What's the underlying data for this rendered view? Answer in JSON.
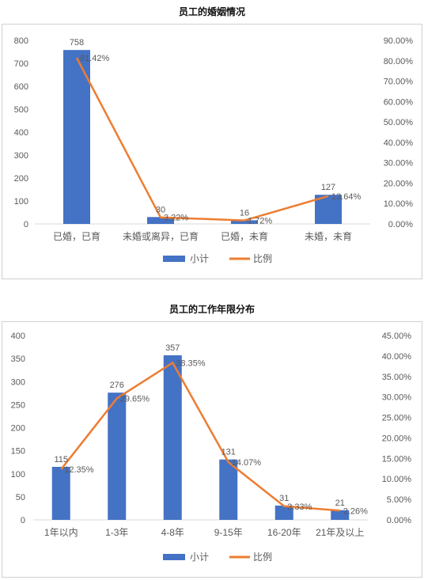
{
  "chart_data": [
    {
      "type": "bar",
      "title": "员工的婚姻情况",
      "categories": [
        "已婚，已育",
        "未婚或离异，已育",
        "已婚，未育",
        "未婚，未育"
      ],
      "series": [
        {
          "name": "小计",
          "type": "bar",
          "axis": "left",
          "values": [
            758,
            30,
            16,
            127
          ],
          "labels": [
            "758",
            "30",
            "16",
            "127"
          ],
          "color": "#4472c4"
        },
        {
          "name": "比例",
          "type": "line",
          "axis": "right",
          "values": [
            81.42,
            3.22,
            1.72,
            13.64
          ],
          "labels": [
            "81.42%",
            "3.22%",
            "1.72%",
            "13.64%"
          ],
          "color": "#ed7d31"
        }
      ],
      "yticks": [
        "0",
        "100",
        "200",
        "300",
        "400",
        "500",
        "600",
        "700",
        "800"
      ],
      "y2ticks": [
        "0.00%",
        "10.00%",
        "20.00%",
        "30.00%",
        "40.00%",
        "50.00%",
        "60.00%",
        "70.00%",
        "80.00%",
        "90.00%"
      ],
      "ylim": [
        0,
        800
      ],
      "y2lim": [
        0,
        90
      ],
      "grid": false,
      "legend": "bottom"
    },
    {
      "type": "bar",
      "title": "员工的工作年限分布",
      "categories": [
        "1年以内",
        "1-3年",
        "4-8年",
        "9-15年",
        "16-20年",
        "21年及以上"
      ],
      "series": [
        {
          "name": "小计",
          "type": "bar",
          "axis": "left",
          "values": [
            115,
            276,
            357,
            131,
            31,
            21
          ],
          "labels": [
            "115",
            "276",
            "357",
            "131",
            "31",
            "21"
          ],
          "color": "#4472c4"
        },
        {
          "name": "比例",
          "type": "line",
          "axis": "right",
          "values": [
            12.35,
            29.65,
            38.35,
            14.07,
            3.33,
            2.26
          ],
          "labels": [
            "12.35%",
            "29.65%",
            "38.35%",
            "14.07%",
            "3.33%",
            "2.26%"
          ],
          "color": "#ed7d31"
        }
      ],
      "yticks": [
        "0",
        "50",
        "100",
        "150",
        "200",
        "250",
        "300",
        "350",
        "400"
      ],
      "y2ticks": [
        "0.00%",
        "5.00%",
        "10.00%",
        "15.00%",
        "20.00%",
        "25.00%",
        "30.00%",
        "35.00%",
        "40.00%",
        "45.00%"
      ],
      "ylim": [
        0,
        400
      ],
      "y2lim": [
        0,
        45
      ],
      "grid": false,
      "legend": "bottom"
    }
  ]
}
